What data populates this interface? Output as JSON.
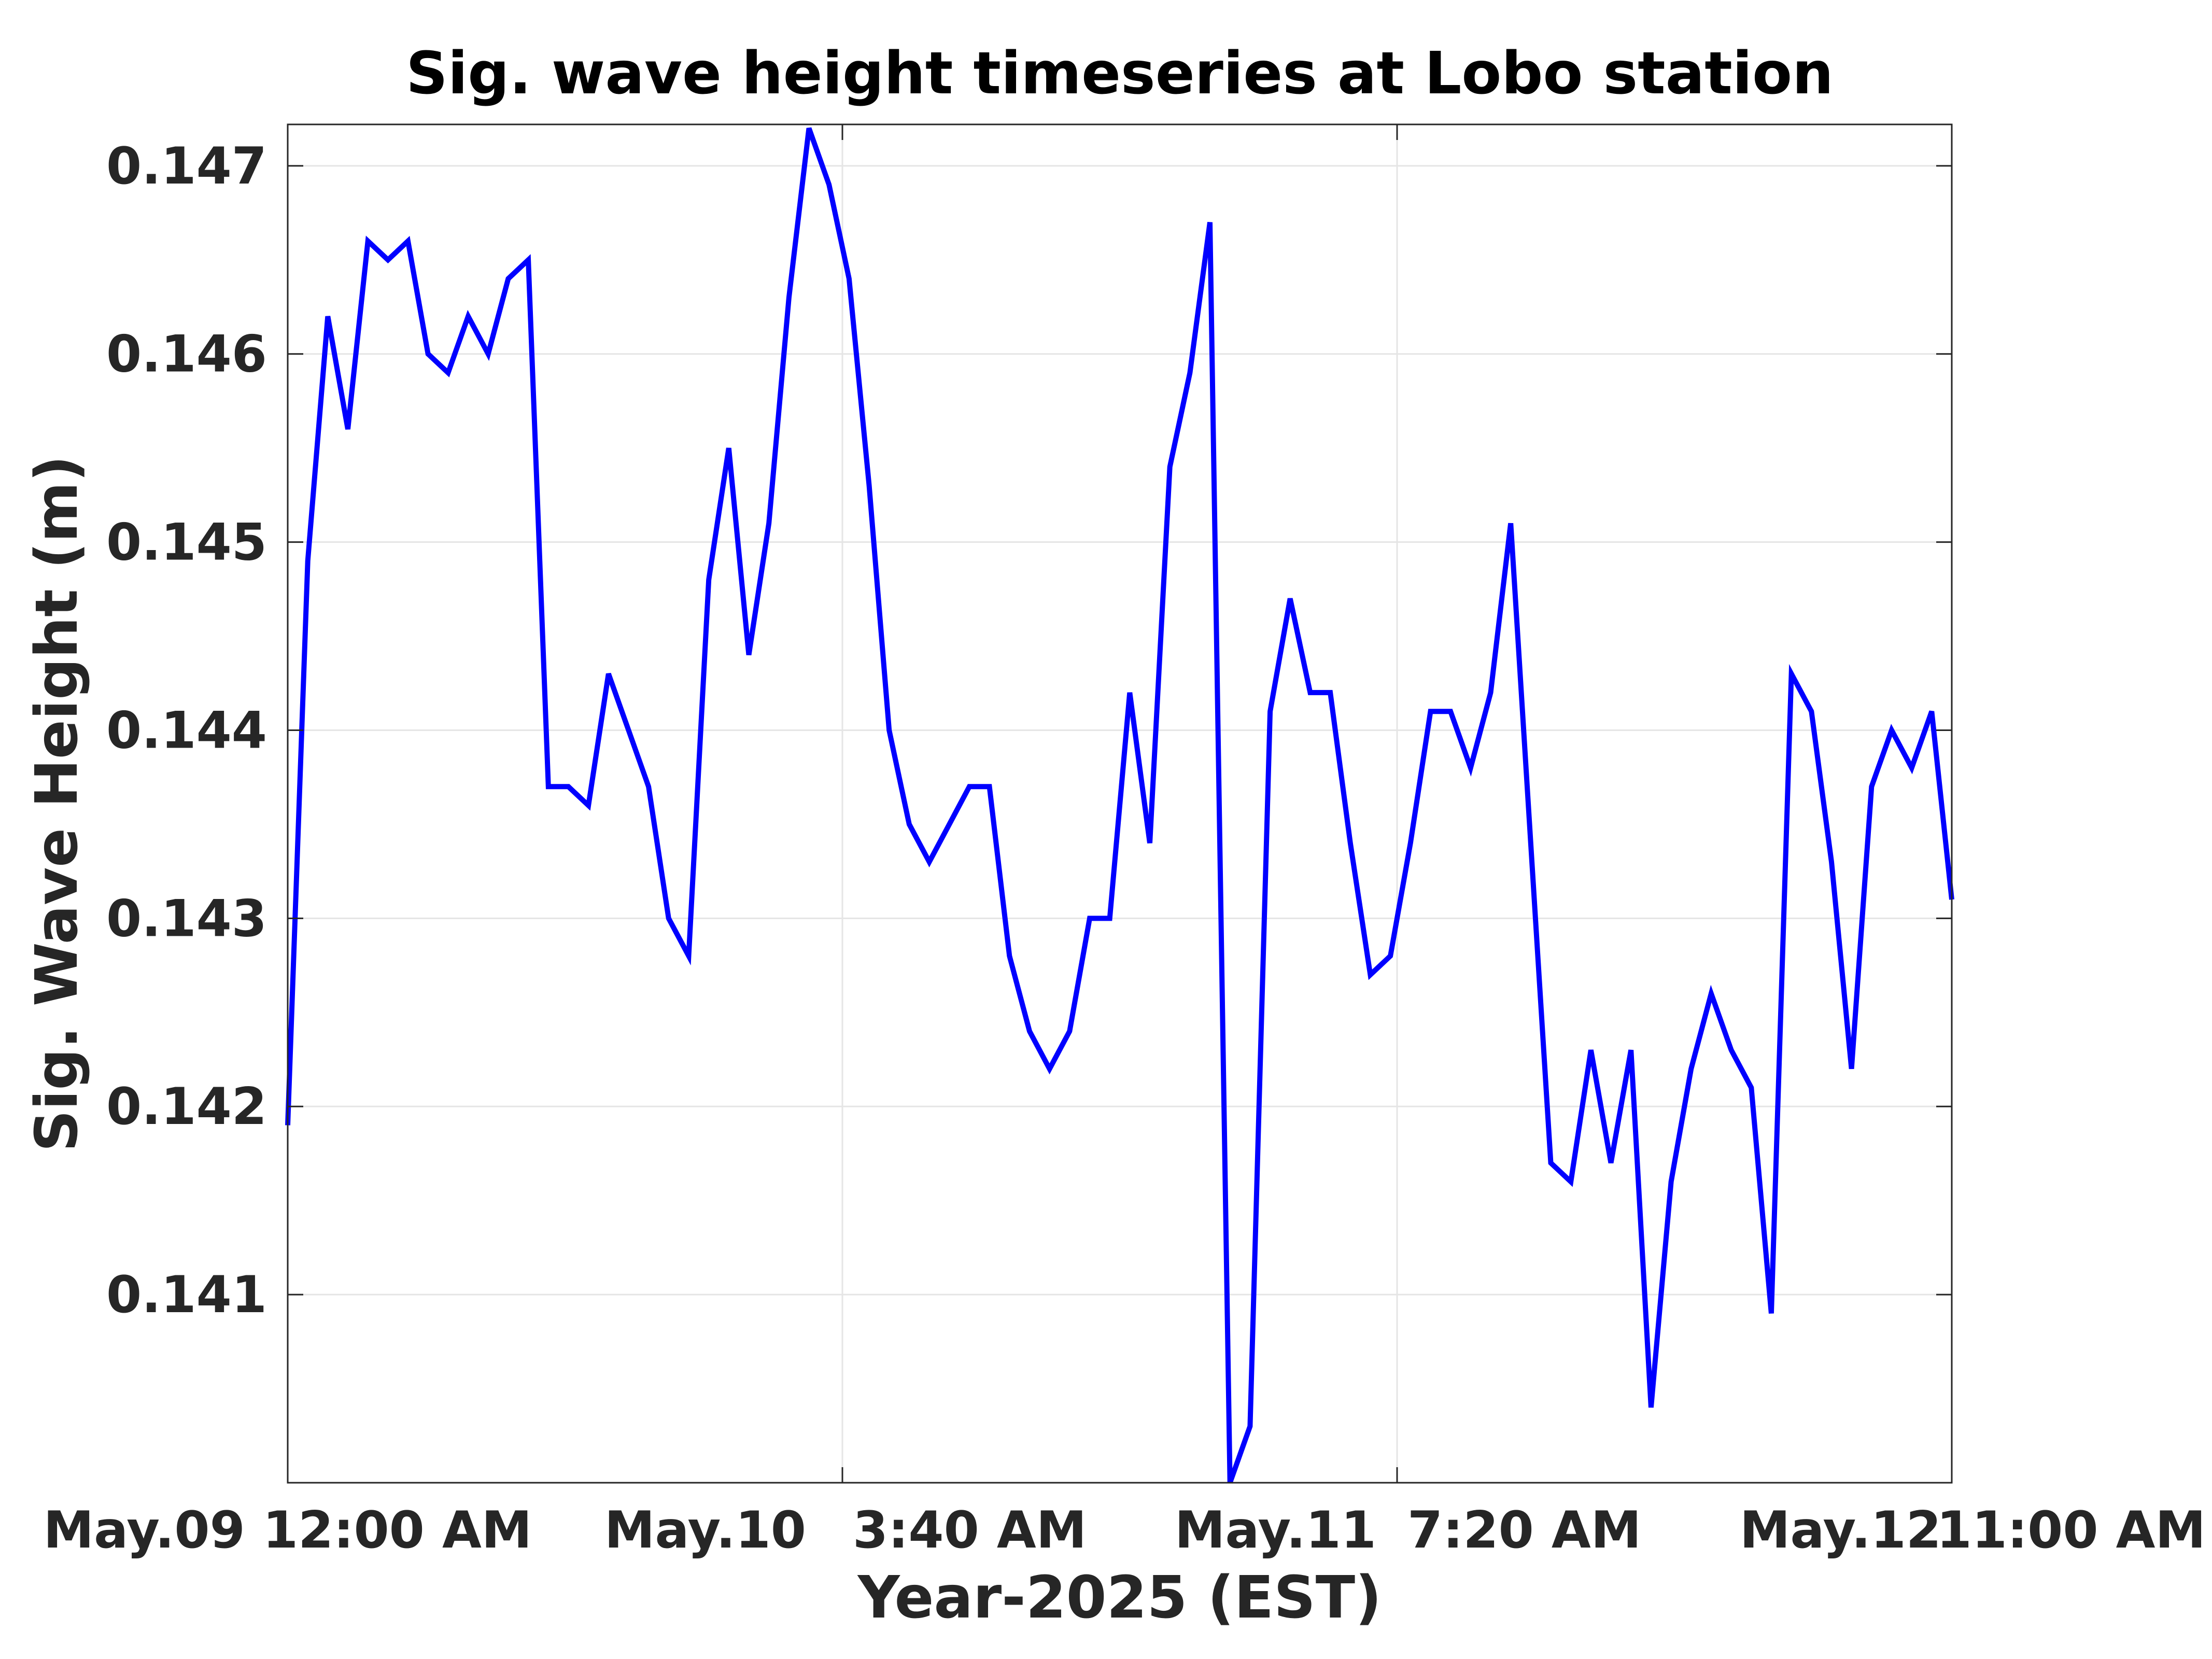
{
  "chart_data": {
    "type": "line",
    "title": "Sig. wave height timeseries at Lobo station",
    "xlabel": "Year-2025 (EST)",
    "ylabel": "Sig. Wave Height (m)",
    "xlim": [
      "May.09 12:00 AM",
      "May.12 11:00 AM"
    ],
    "ylim": [
      0.14,
      0.14722
    ],
    "x_tick_labels": [
      "May.09 12:00 AM",
      "May.10",
      "3:40 AM",
      "May.11",
      "7:20 AM",
      "May.12",
      "11:00 AM"
    ],
    "y_ticks": [
      0.141,
      0.142,
      0.143,
      0.144,
      0.145,
      0.146,
      0.147
    ],
    "y_tick_labels": [
      "0.141",
      "0.142",
      "0.143",
      "0.144",
      "0.145",
      "0.146",
      "0.147"
    ],
    "grid": true,
    "sampling": "hourly",
    "series": [
      {
        "color": "#0000ff",
        "x": [
          "May.09 00:00",
          "May.09 01:00",
          "May.09 02:00",
          "May.09 03:00",
          "May.09 04:00",
          "May.09 05:00",
          "May.09 06:00",
          "May.09 07:00",
          "May.09 08:00",
          "May.09 09:00",
          "May.09 10:00",
          "May.09 11:00",
          "May.09 12:00",
          "May.09 13:00",
          "May.09 14:00",
          "May.09 15:00",
          "May.09 16:00",
          "May.09 17:00",
          "May.09 18:00",
          "May.09 19:00",
          "May.09 20:00",
          "May.09 21:00",
          "May.09 22:00",
          "May.09 23:00",
          "May.10 00:00",
          "May.10 01:00",
          "May.10 02:00",
          "May.10 03:00",
          "May.10 04:00",
          "May.10 05:00",
          "May.10 06:00",
          "May.10 07:00",
          "May.10 08:00",
          "May.10 09:00",
          "May.10 10:00",
          "May.10 11:00",
          "May.10 12:00",
          "May.10 13:00",
          "May.10 14:00",
          "May.10 15:00",
          "May.10 16:00",
          "May.10 17:00",
          "May.10 18:00",
          "May.10 19:00",
          "May.10 20:00",
          "May.10 21:00",
          "May.10 22:00",
          "May.10 23:00",
          "May.11 00:00",
          "May.11 01:00",
          "May.11 02:00",
          "May.11 03:00",
          "May.11 04:00",
          "May.11 05:00",
          "May.11 06:00",
          "May.11 07:00",
          "May.11 08:00",
          "May.11 09:00",
          "May.11 10:00",
          "May.11 11:00",
          "May.11 12:00",
          "May.11 13:00",
          "May.11 14:00",
          "May.11 15:00",
          "May.11 16:00",
          "May.11 17:00",
          "May.11 18:00",
          "May.11 19:00",
          "May.11 20:00",
          "May.11 21:00",
          "May.11 22:00",
          "May.11 23:00",
          "May.12 00:00",
          "May.12 01:00",
          "May.12 02:00",
          "May.12 03:00",
          "May.12 04:00",
          "May.12 05:00",
          "May.12 06:00",
          "May.12 07:00",
          "May.12 08:00",
          "May.12 09:00",
          "May.12 10:00",
          "May.12 11:00"
        ],
        "values": [
          0.1419,
          0.1449,
          0.1462,
          0.1456,
          0.1466,
          0.1465,
          0.1466,
          0.146,
          0.1459,
          0.1462,
          0.146,
          0.1464,
          0.1465,
          0.1437,
          0.1437,
          0.1436,
          0.1443,
          0.144,
          0.1437,
          0.143,
          0.1428,
          0.1448,
          0.1455,
          0.1444,
          0.1451,
          0.1463,
          0.1472,
          0.1469,
          0.1464,
          0.1453,
          0.144,
          0.1435,
          0.1433,
          0.1435,
          0.1437,
          0.1437,
          0.1428,
          0.1424,
          0.1422,
          0.1424,
          0.143,
          0.143,
          0.1442,
          0.1434,
          0.1454,
          0.1459,
          0.1467,
          0.14,
          0.1403,
          0.1441,
          0.1447,
          0.1442,
          0.1442,
          0.1434,
          0.1427,
          0.1428,
          0.1434,
          0.1441,
          0.1441,
          0.1438,
          0.1442,
          0.1451,
          0.1434,
          0.1417,
          0.1416,
          0.1423,
          0.1417,
          0.1423,
          0.1404,
          0.1416,
          0.1422,
          0.1426,
          0.1423,
          0.1421,
          0.1409,
          0.1443,
          0.1441,
          0.1433,
          0.1422,
          0.1437,
          0.144,
          0.1438,
          0.1441,
          0.1431
        ]
      }
    ]
  }
}
